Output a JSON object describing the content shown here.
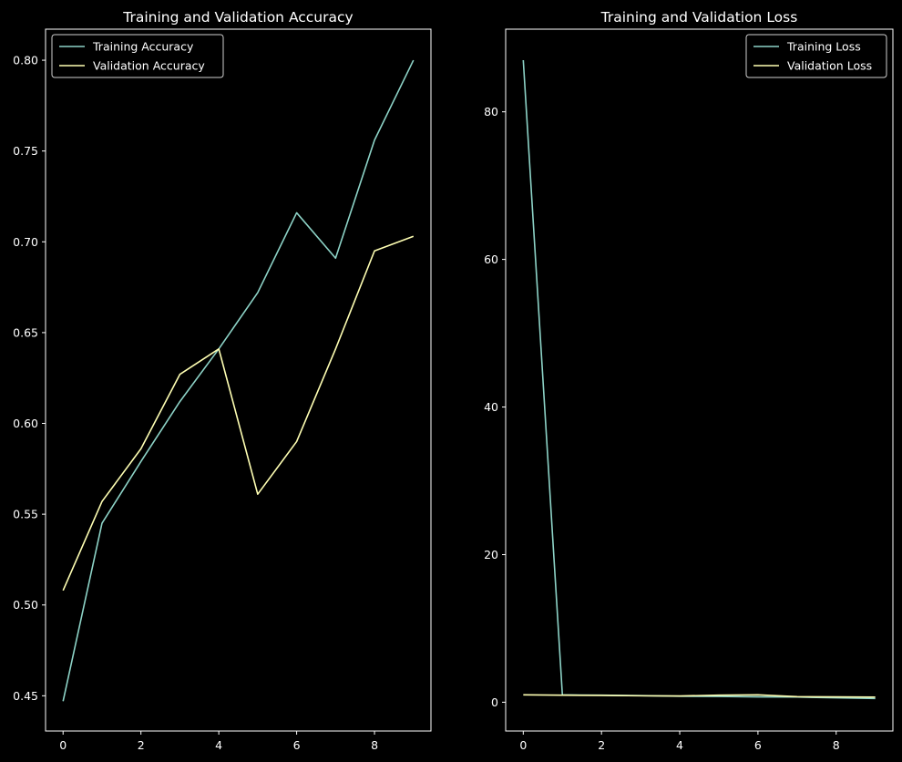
{
  "chart_data": [
    {
      "type": "line",
      "title": "Training and Validation Accuracy",
      "xlabel": "",
      "ylabel": "",
      "x": [
        0,
        1,
        2,
        3,
        4,
        5,
        6,
        7,
        8,
        9
      ],
      "xlim": [
        -0.45,
        9.45
      ],
      "ylim": [
        0.4306,
        0.8171
      ],
      "xticks": [
        0,
        2,
        4,
        6,
        8
      ],
      "yticks": [
        0.45,
        0.5,
        0.55,
        0.6,
        0.65,
        0.7,
        0.75,
        0.8
      ],
      "ytick_labels": [
        "0.45",
        "0.50",
        "0.55",
        "0.60",
        "0.65",
        "0.70",
        "0.75",
        "0.80"
      ],
      "legend_position": "top-left",
      "grid": false,
      "series": [
        {
          "name": "Training Accuracy",
          "color": "#8dd3c7",
          "values": [
            0.447,
            0.545,
            0.579,
            0.612,
            0.641,
            0.672,
            0.716,
            0.691,
            0.756,
            0.8
          ]
        },
        {
          "name": "Validation Accuracy",
          "color": "#ffffb3",
          "values": [
            0.508,
            0.557,
            0.586,
            0.627,
            0.641,
            0.561,
            0.59,
            0.641,
            0.695,
            0.703
          ]
        }
      ]
    },
    {
      "type": "line",
      "title": "Training and Validation Loss",
      "xlabel": "",
      "ylabel": "",
      "x": [
        0,
        1,
        2,
        3,
        4,
        5,
        6,
        7,
        8,
        9
      ],
      "xlim": [
        -0.45,
        9.45
      ],
      "ylim": [
        -3.9,
        91.2
      ],
      "xticks": [
        0,
        2,
        4,
        6,
        8
      ],
      "yticks": [
        0,
        20,
        40,
        60,
        80
      ],
      "ytick_labels": [
        "0",
        "20",
        "40",
        "60",
        "80"
      ],
      "legend_position": "top-right",
      "grid": false,
      "series": [
        {
          "name": "Training Loss",
          "color": "#8dd3c7",
          "values": [
            87.0,
            1.0,
            0.95,
            0.9,
            0.82,
            0.78,
            0.72,
            0.7,
            0.6,
            0.5
          ]
        },
        {
          "name": "Validation Loss",
          "color": "#ffffb3",
          "values": [
            1.0,
            0.95,
            0.92,
            0.87,
            0.85,
            0.95,
            1.0,
            0.75,
            0.72,
            0.7
          ]
        }
      ]
    }
  ]
}
